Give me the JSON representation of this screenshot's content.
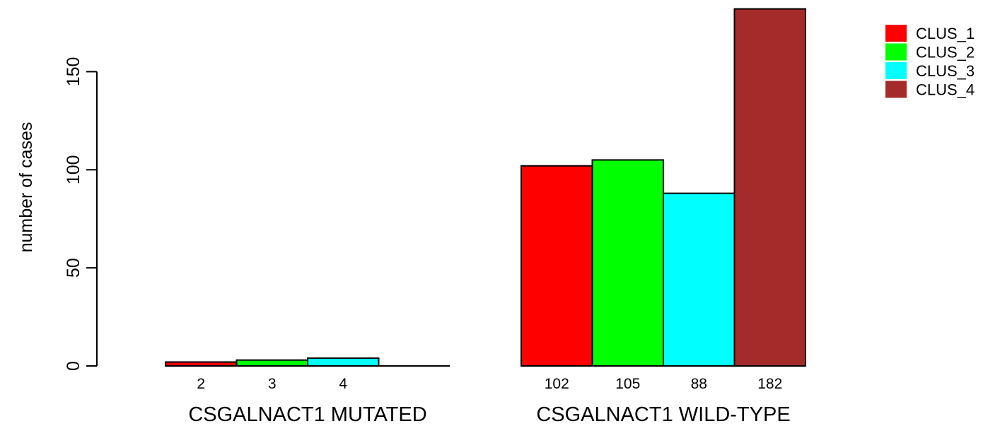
{
  "chart_data": {
    "type": "bar",
    "ylabel": "number of cases",
    "ylim": [
      0,
      182
    ],
    "yticks": [
      0,
      50,
      100,
      150
    ],
    "groups": [
      {
        "label": "CSGALNACT1 MUTATED",
        "values": [
          2,
          3,
          4,
          0
        ],
        "value_labels": [
          "2",
          "3",
          "4",
          ""
        ]
      },
      {
        "label": "CSGALNACT1 WILD-TYPE",
        "values": [
          102,
          105,
          88,
          182
        ],
        "value_labels": [
          "102",
          "105",
          "88",
          "182"
        ]
      }
    ],
    "series": [
      {
        "name": "CLUS_1",
        "color": "#ff0000"
      },
      {
        "name": "CLUS_2",
        "color": "#00ff00"
      },
      {
        "name": "CLUS_3",
        "color": "#00ffff"
      },
      {
        "name": "CLUS_4",
        "color": "#a52a2a"
      }
    ],
    "legend_position": "top-right",
    "grid": false
  }
}
